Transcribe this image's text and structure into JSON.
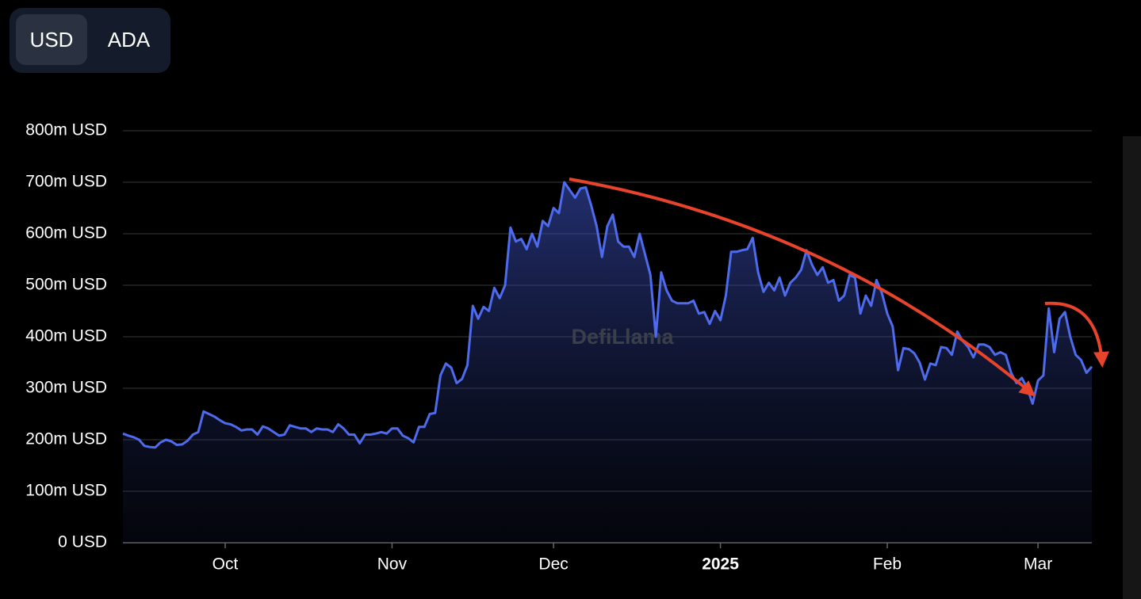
{
  "toggle": {
    "options": [
      "USD",
      "ADA"
    ]
  },
  "chart_data": {
    "type": "area",
    "color": "#4f6bed",
    "watermark": "DefiLlama",
    "grid": true,
    "ylim": [
      0,
      800
    ],
    "yticks": [
      {
        "value": 0,
        "label": "0 USD"
      },
      {
        "value": 100,
        "label": "100m USD"
      },
      {
        "value": 200,
        "label": "200m USD"
      },
      {
        "value": 300,
        "label": "300m USD"
      },
      {
        "value": 400,
        "label": "400m USD"
      },
      {
        "value": 500,
        "label": "500m USD"
      },
      {
        "value": 600,
        "label": "600m USD"
      },
      {
        "value": 700,
        "label": "700m USD"
      },
      {
        "value": 800,
        "label": "800m USD"
      }
    ],
    "xlim": [
      0,
      180
    ],
    "xticks": [
      {
        "value": 19,
        "label": "Oct"
      },
      {
        "value": 50,
        "label": "Nov"
      },
      {
        "value": 80,
        "label": "Dec"
      },
      {
        "value": 111,
        "label": "2025"
      },
      {
        "value": 142,
        "label": "Feb"
      },
      {
        "value": 170,
        "label": "Mar"
      }
    ],
    "values": [
      212,
      208,
      205,
      200,
      188,
      186,
      185,
      195,
      200,
      197,
      190,
      191,
      198,
      210,
      215,
      255,
      250,
      245,
      238,
      232,
      230,
      225,
      218,
      220,
      220,
      210,
      226,
      222,
      215,
      208,
      210,
      228,
      225,
      222,
      222,
      215,
      222,
      220,
      220,
      215,
      230,
      222,
      210,
      210,
      193,
      210,
      210,
      212,
      215,
      212,
      222,
      222,
      208,
      203,
      195,
      225,
      225,
      250,
      252,
      325,
      348,
      340,
      310,
      318,
      345,
      460,
      435,
      458,
      450,
      495,
      475,
      500,
      612,
      585,
      590,
      570,
      600,
      575,
      625,
      615,
      650,
      640,
      700,
      685,
      670,
      688,
      690,
      655,
      615,
      555,
      615,
      637,
      585,
      575,
      575,
      555,
      600,
      560,
      520,
      400,
      525,
      490,
      470,
      465,
      465,
      465,
      470,
      445,
      448,
      425,
      450,
      432,
      480,
      565,
      565,
      568,
      570,
      592,
      525,
      487,
      505,
      490,
      515,
      480,
      505,
      515,
      530,
      568,
      540,
      520,
      535,
      505,
      510,
      470,
      480,
      520,
      515,
      445,
      480,
      460,
      510,
      485,
      445,
      420,
      335,
      378,
      376,
      368,
      350,
      317,
      348,
      345,
      380,
      378,
      365,
      410,
      392,
      380,
      360,
      385,
      385,
      380,
      365,
      370,
      365,
      330,
      310,
      320,
      300,
      270,
      315,
      325,
      455,
      370,
      435,
      448,
      400,
      365,
      355,
      330,
      342
    ]
  }
}
